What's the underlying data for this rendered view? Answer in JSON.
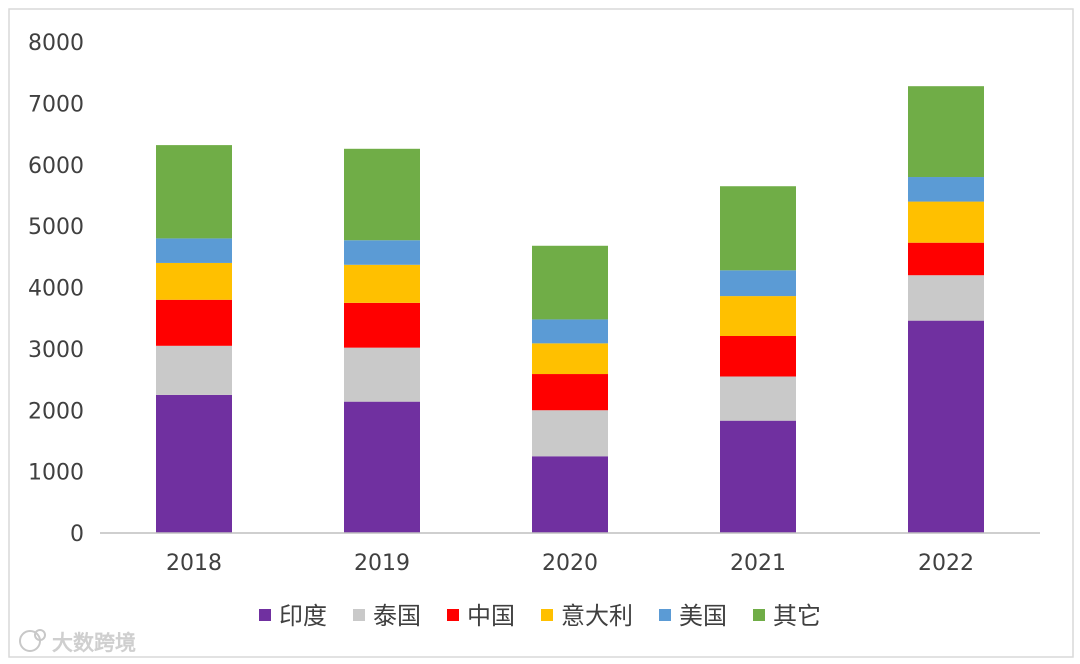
{
  "chart_data": {
    "type": "bar",
    "stacked": true,
    "categories": [
      "2018",
      "2019",
      "2020",
      "2021",
      "2022"
    ],
    "series": [
      {
        "name": "印度",
        "color": "#7030A0",
        "values": [
          2250,
          2140,
          1250,
          1830,
          3460
        ]
      },
      {
        "name": "泰国",
        "color": "#C9C9C9",
        "values": [
          800,
          880,
          750,
          720,
          740
        ]
      },
      {
        "name": "中国",
        "color": "#FF0000",
        "values": [
          750,
          730,
          590,
          660,
          530
        ]
      },
      {
        "name": "意大利",
        "color": "#FFC000",
        "values": [
          600,
          620,
          500,
          650,
          670
        ]
      },
      {
        "name": "美国",
        "color": "#5B9BD5",
        "values": [
          400,
          400,
          390,
          420,
          400
        ]
      },
      {
        "name": "其它",
        "color": "#70AD47",
        "values": [
          1520,
          1490,
          1200,
          1370,
          1480
        ]
      }
    ],
    "ylim": [
      0,
      8000
    ],
    "yticks": [
      0,
      1000,
      2000,
      3000,
      4000,
      5000,
      6000,
      7000,
      8000
    ],
    "grid": false,
    "legend_position": "bottom",
    "title": "",
    "xlabel": "",
    "ylabel": ""
  },
  "watermark": "大数跨境"
}
